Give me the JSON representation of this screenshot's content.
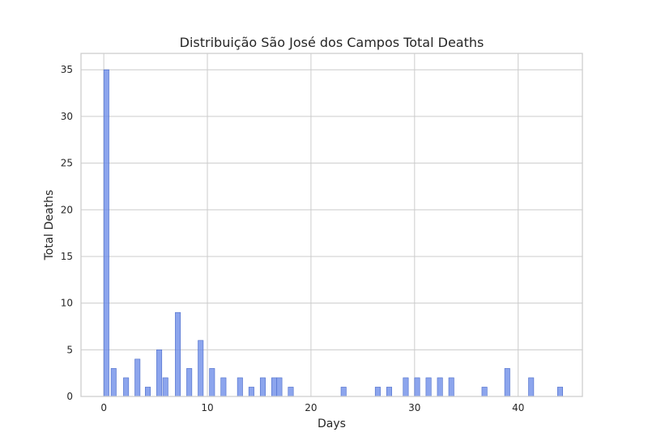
{
  "chart_data": {
    "type": "bar",
    "title": "Distribuição São José dos Campos Total Deaths",
    "xlabel": "Days",
    "ylabel": "Total Deaths",
    "xlim": [
      -2.2,
      46.2
    ],
    "ylim": [
      0,
      36.75
    ],
    "xticks": [
      0,
      10,
      20,
      30,
      40
    ],
    "yticks": [
      0,
      5,
      10,
      15,
      20,
      25,
      30,
      35
    ],
    "grid": true,
    "legend": "none",
    "bar_color": "#6f8ee8",
    "bar_width": 0.5,
    "series": [
      {
        "x": [
          0,
          0.7,
          1.9,
          3,
          4,
          5.1,
          5.7,
          6.9,
          8,
          9.1,
          10.2,
          11.3,
          12.9,
          14,
          15.1,
          16.2,
          16.7,
          17.8,
          22.9,
          26.2,
          27.3,
          28.9,
          30,
          31.1,
          32.2,
          33.3,
          36.5,
          38.7,
          41,
          43.8
        ],
        "values": [
          35,
          3,
          2,
          4,
          1,
          5,
          2,
          9,
          3,
          6,
          3,
          2,
          2,
          1,
          2,
          2,
          2,
          1,
          1,
          1,
          1,
          2,
          2,
          2,
          2,
          2,
          1,
          3,
          2,
          1
        ]
      }
    ]
  }
}
